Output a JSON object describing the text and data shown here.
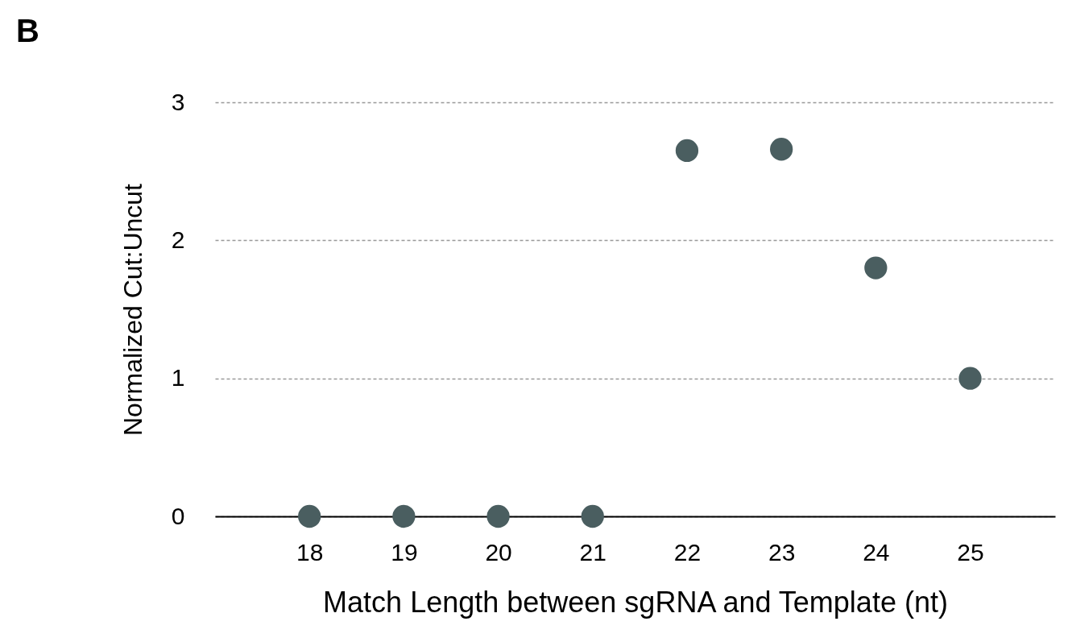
{
  "chart_data": {
    "type": "scatter",
    "annotations": [
      "B"
    ],
    "xlabel": "Match Length between sgRNA and Template (nt)",
    "ylabel": "Normalized Cut:Uncut",
    "x": [
      18,
      19,
      20,
      21,
      22,
      23,
      24,
      25
    ],
    "series": [
      {
        "color": "#4a5e60",
        "values": [
          0,
          0,
          0,
          0,
          2.65,
          2.66,
          1.8,
          1.0
        ]
      }
    ],
    "xlim": [
      17,
      25.9
    ],
    "ylim": [
      0,
      3
    ],
    "xticks": [
      18,
      19,
      20,
      21,
      22,
      23,
      24,
      25
    ],
    "yticks": [
      0,
      1,
      2,
      3
    ],
    "grid": "y",
    "marker": "circle"
  }
}
